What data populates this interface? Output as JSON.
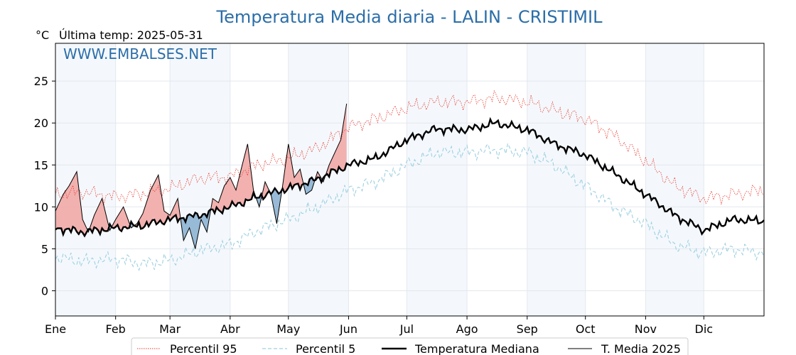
{
  "chart_data": {
    "type": "line",
    "title": "Temperatura Media diaria - LALIN - CRISTIMIL",
    "ylabel": "°C",
    "last_temp_label": "Última temp: 2025-05-31",
    "watermark": "WWW.EMBALSES.NET",
    "ylim": [
      -3,
      29.5
    ],
    "xlim": [
      1,
      366
    ],
    "yticks": [
      0,
      5,
      10,
      15,
      20,
      25
    ],
    "months": [
      {
        "label": "Ene",
        "day": 1
      },
      {
        "label": "Feb",
        "day": 32
      },
      {
        "label": "Mar",
        "day": 60
      },
      {
        "label": "Abr",
        "day": 91
      },
      {
        "label": "May",
        "day": 121
      },
      {
        "label": "Jun",
        "day": 152
      },
      {
        "label": "Jul",
        "day": 182
      },
      {
        "label": "Ago",
        "day": 213
      },
      {
        "label": "Sep",
        "day": 244
      },
      {
        "label": "Oct",
        "day": 274
      },
      {
        "label": "Nov",
        "day": 305
      },
      {
        "label": "Dic",
        "day": 335
      }
    ],
    "grid": true,
    "legend_position": "bottom",
    "series": [
      {
        "key": "p95",
        "name": "Percentil 95",
        "color": "#e83a2f",
        "style": "dotted",
        "x": [
          1,
          15,
          32,
          46,
          60,
          75,
          91,
          105,
          121,
          136,
          152,
          166,
          182,
          197,
          213,
          228,
          244,
          258,
          274,
          289,
          305,
          320,
          335,
          350,
          366
        ],
        "y": [
          11.5,
          11.8,
          11.2,
          11.6,
          12.2,
          13.4,
          13.6,
          15.0,
          15.8,
          17.0,
          19.5,
          20.5,
          21.8,
          22.5,
          22.5,
          23.0,
          22.5,
          21.5,
          20.5,
          18.5,
          15.5,
          12.5,
          11.0,
          11.5,
          12.0
        ]
      },
      {
        "key": "p5",
        "name": "Percentil 5",
        "color": "#9ed0e0",
        "style": "dashed",
        "x": [
          1,
          15,
          32,
          46,
          60,
          75,
          91,
          105,
          121,
          136,
          152,
          166,
          182,
          197,
          213,
          228,
          244,
          258,
          274,
          289,
          305,
          320,
          335,
          350,
          366
        ],
        "y": [
          4.0,
          3.5,
          3.8,
          3.2,
          3.6,
          4.8,
          5.5,
          7.2,
          8.5,
          10.0,
          12.0,
          13.0,
          15.0,
          16.5,
          16.5,
          16.8,
          16.5,
          15.0,
          12.5,
          10.0,
          8.0,
          5.5,
          4.5,
          5.0,
          4.5
        ]
      },
      {
        "key": "median",
        "name": "Temperatura Mediana",
        "color": "#000000",
        "style": "thick",
        "x": [
          1,
          15,
          32,
          46,
          60,
          75,
          91,
          105,
          121,
          136,
          152,
          166,
          182,
          197,
          213,
          228,
          244,
          258,
          274,
          289,
          305,
          320,
          335,
          350,
          366
        ],
        "y": [
          7.5,
          7.0,
          7.5,
          7.8,
          8.5,
          9.0,
          10.0,
          11.2,
          12.2,
          13.3,
          15.0,
          15.8,
          18.0,
          19.3,
          19.2,
          20.0,
          19.2,
          17.5,
          16.2,
          14.0,
          11.5,
          9.0,
          7.2,
          8.5,
          8.3
        ]
      },
      {
        "key": "current",
        "name": "T. Media 2025",
        "color": "#000000",
        "style": "thin",
        "x": [
          1,
          5,
          8,
          12,
          15,
          18,
          21,
          25,
          29,
          32,
          36,
          40,
          43,
          46,
          50,
          54,
          57,
          60,
          64,
          67,
          70,
          73,
          76,
          79,
          82,
          85,
          88,
          91,
          94,
          97,
          100,
          103,
          106,
          109,
          112,
          115,
          118,
          121,
          124,
          127,
          130,
          133,
          136,
          139,
          142,
          145,
          148,
          151
        ],
        "y": [
          9.5,
          11.5,
          12.5,
          14.2,
          8.5,
          7.0,
          9.0,
          11.0,
          7.2,
          8.5,
          10.0,
          7.5,
          8.0,
          9.2,
          12.0,
          13.8,
          9.5,
          9.0,
          11.0,
          6.0,
          7.5,
          5.0,
          8.5,
          7.0,
          11.0,
          10.5,
          12.5,
          13.5,
          12.0,
          14.8,
          17.5,
          12.0,
          10.0,
          13.0,
          11.5,
          8.0,
          12.5,
          17.5,
          13.5,
          14.5,
          11.5,
          12.0,
          14.2,
          13.0,
          15.0,
          16.5,
          18.0,
          22.3
        ]
      }
    ]
  }
}
